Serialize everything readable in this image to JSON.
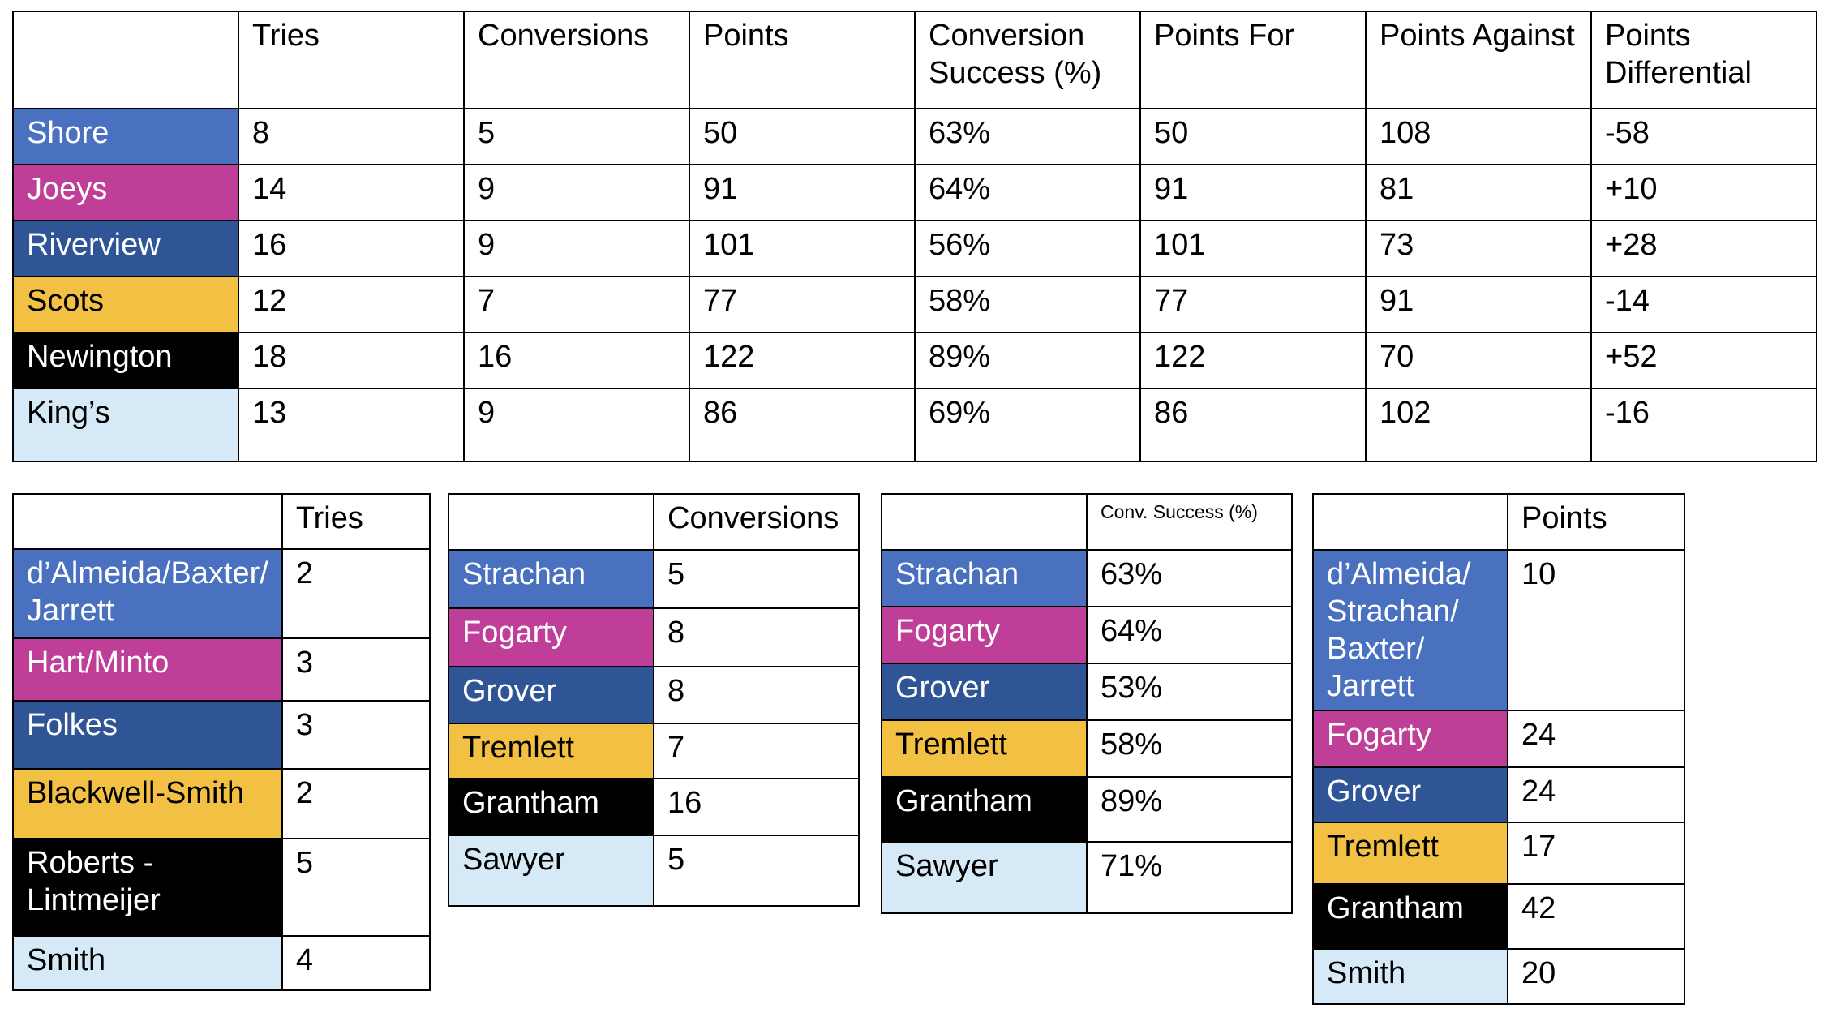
{
  "main_table": {
    "headers": [
      "",
      "Tries",
      "Conversions",
      "Points",
      "Conversion Success (%)",
      "Points For",
      "Points Against",
      "Points Differential"
    ],
    "rows": [
      {
        "team": "Shore",
        "color": "#4a70c0",
        "cells": [
          "8",
          "5",
          "50",
          "63%",
          "50",
          "108",
          "-58"
        ]
      },
      {
        "team": "Joeys",
        "color": "#bf3f98",
        "cells": [
          "14",
          "9",
          "91",
          "64%",
          "91",
          "81",
          "+10"
        ]
      },
      {
        "team": "Riverview",
        "color": "#2f5597",
        "cells": [
          "16",
          "9",
          "101",
          "56%",
          "101",
          "73",
          "+28"
        ]
      },
      {
        "team": "Scots",
        "color": "#f2c043",
        "cells": [
          "12",
          "7",
          "77",
          "58%",
          "77",
          "91",
          "-14"
        ]
      },
      {
        "team": "Newington",
        "color": "#000000",
        "cells": [
          "18",
          "16",
          "122",
          "89%",
          "122",
          "70",
          "+52"
        ]
      },
      {
        "team": "King’s",
        "color": "#d6e9f7",
        "cells": [
          "13",
          "9",
          "86",
          "69%",
          "86",
          "102",
          "-16"
        ]
      }
    ]
  },
  "tries_table": {
    "header": "Tries",
    "rows": [
      {
        "name": "d’Almeida/Baxter/\nJarrett",
        "value": "2"
      },
      {
        "name": "Hart/Minto",
        "value": "3"
      },
      {
        "name": "Folkes",
        "value": "3"
      },
      {
        "name": "Blackwell-Smith",
        "value": "2"
      },
      {
        "name": "Roberts -\nLintmeijer",
        "value": "5"
      },
      {
        "name": "Smith",
        "value": "4"
      }
    ]
  },
  "conversions_table": {
    "header": "Conversions",
    "rows": [
      {
        "name": "Strachan",
        "value": "5"
      },
      {
        "name": "Fogarty",
        "value": "8"
      },
      {
        "name": "Grover",
        "value": "8"
      },
      {
        "name": "Tremlett",
        "value": "7"
      },
      {
        "name": "Grantham",
        "value": "16"
      },
      {
        "name": "Sawyer",
        "value": "5"
      }
    ]
  },
  "conv_success_table": {
    "header": "Conv. Success (%)",
    "rows": [
      {
        "name": "Strachan",
        "value": "63%"
      },
      {
        "name": "Fogarty",
        "value": "64%"
      },
      {
        "name": "Grover",
        "value": "53%"
      },
      {
        "name": "Tremlett",
        "value": "58%"
      },
      {
        "name": "Grantham",
        "value": "89%"
      },
      {
        "name": "Sawyer",
        "value": "71%"
      }
    ]
  },
  "points_table": {
    "header": "Points",
    "rows": [
      {
        "name": "d’Almeida/\nStrachan/\nBaxter/\nJarrett",
        "value": "10"
      },
      {
        "name": "Fogarty",
        "value": "24"
      },
      {
        "name": "Grover",
        "value": "24"
      },
      {
        "name": "Tremlett",
        "value": "17"
      },
      {
        "name": "Grantham",
        "value": "42"
      },
      {
        "name": "Smith",
        "value": "20"
      }
    ]
  }
}
